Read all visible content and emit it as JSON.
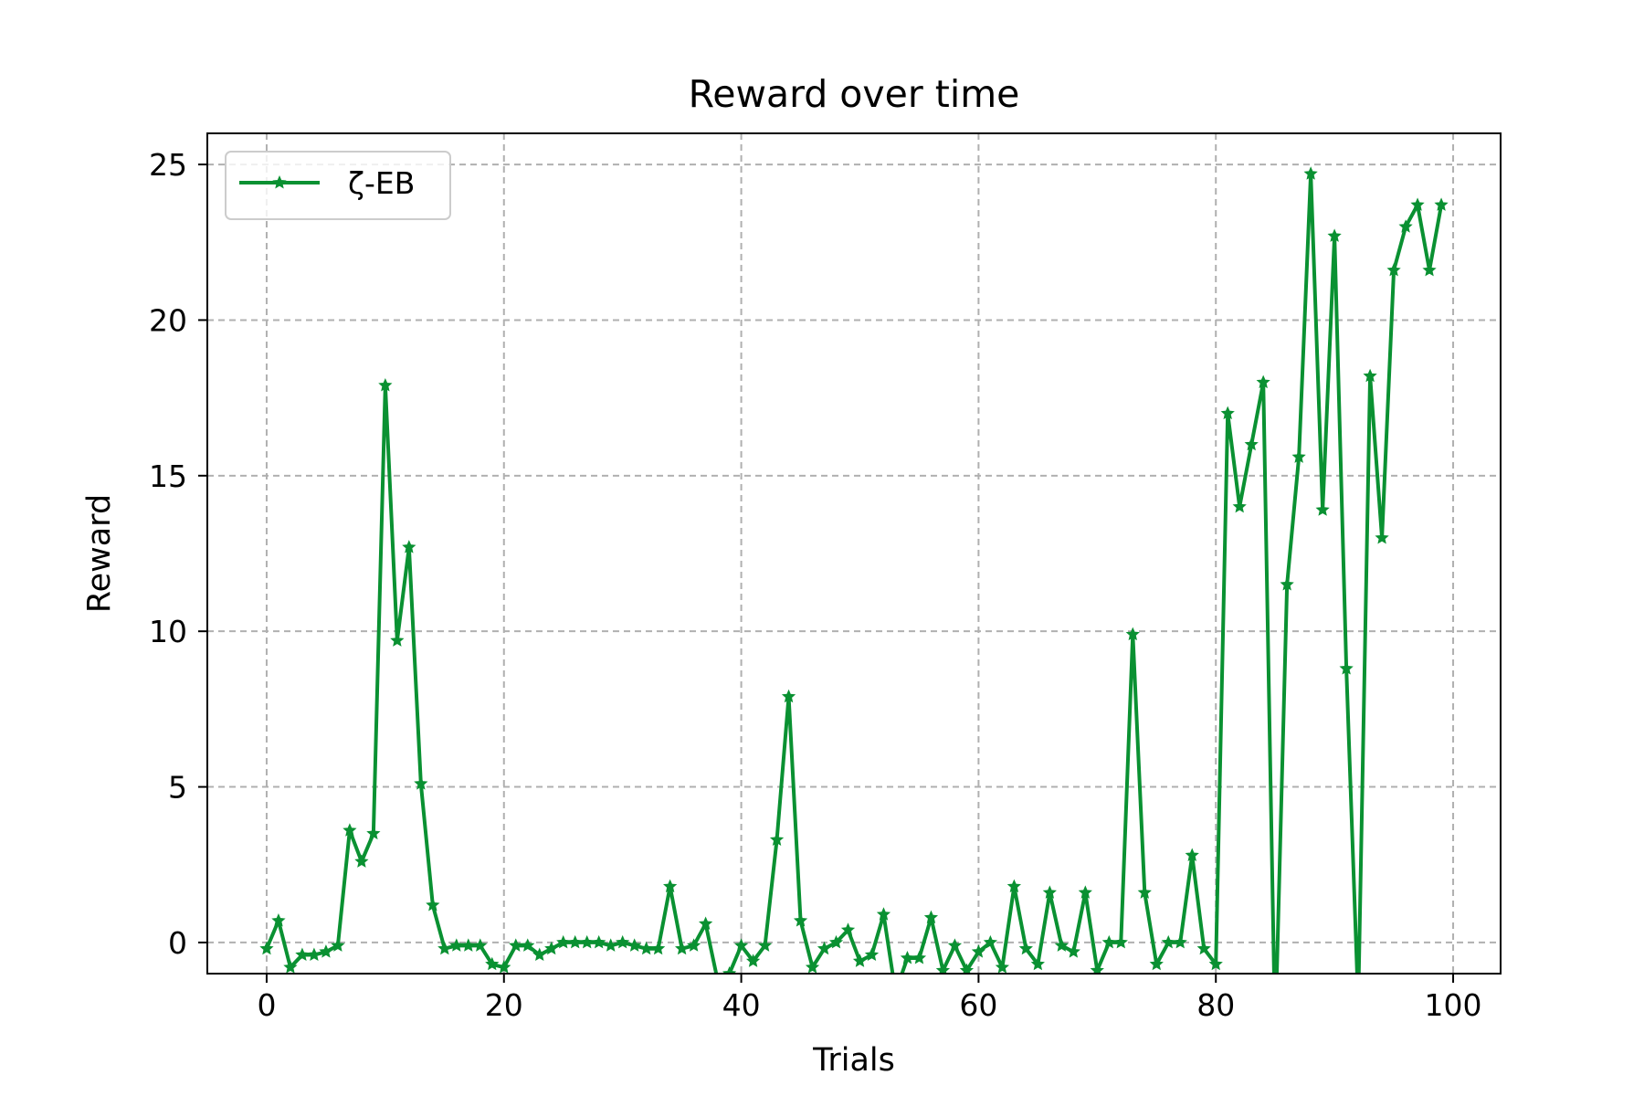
{
  "chart_data": {
    "type": "line",
    "title": "Reward over time",
    "xlabel": "Trials",
    "ylabel": "Reward",
    "xlim": [
      -5,
      104
    ],
    "ylim": [
      -1,
      26
    ],
    "xticks": [
      0,
      20,
      40,
      60,
      80,
      100
    ],
    "yticks": [
      0,
      5,
      10,
      15,
      20,
      25
    ],
    "grid": true,
    "grid_style": "dashed",
    "legend_position": "upper-left",
    "series": [
      {
        "name": "ζ-EB",
        "color": "#0a9132",
        "marker": "star",
        "x": [
          0,
          1,
          2,
          3,
          4,
          5,
          6,
          7,
          8,
          9,
          10,
          11,
          12,
          13,
          14,
          15,
          16,
          17,
          18,
          19,
          20,
          21,
          22,
          23,
          24,
          25,
          26,
          27,
          28,
          29,
          30,
          31,
          32,
          33,
          34,
          35,
          36,
          37,
          38,
          39,
          40,
          41,
          42,
          43,
          44,
          45,
          46,
          47,
          48,
          49,
          50,
          51,
          52,
          53,
          54,
          55,
          56,
          57,
          58,
          59,
          60,
          61,
          62,
          63,
          64,
          65,
          66,
          67,
          68,
          69,
          70,
          71,
          72,
          73,
          74,
          75,
          76,
          77,
          78,
          79,
          80,
          81,
          82,
          83,
          84,
          85,
          86,
          87,
          88,
          89,
          90,
          91,
          92,
          93,
          94,
          95,
          96,
          97,
          98,
          99
        ],
        "y": [
          -0.2,
          0.7,
          -0.8,
          -0.4,
          -0.4,
          -0.3,
          -0.1,
          3.6,
          2.6,
          3.5,
          17.9,
          9.7,
          12.7,
          5.1,
          1.2,
          -0.2,
          -0.1,
          -0.1,
          -0.1,
          -0.7,
          -0.8,
          -0.1,
          -0.1,
          -0.4,
          -0.2,
          0.0,
          0.0,
          0.0,
          0.0,
          -0.1,
          0.0,
          -0.1,
          -0.2,
          -0.2,
          1.8,
          -0.2,
          -0.1,
          0.6,
          -1.2,
          -1.0,
          -0.1,
          -0.6,
          -0.1,
          3.3,
          7.9,
          0.7,
          -0.8,
          -0.2,
          0.0,
          0.4,
          -0.6,
          -0.4,
          0.9,
          -1.6,
          -0.5,
          -0.5,
          0.8,
          -0.9,
          -0.1,
          -0.9,
          -0.3,
          0.0,
          -0.8,
          1.8,
          -0.2,
          -0.7,
          1.6,
          -0.1,
          -0.3,
          1.6,
          -0.9,
          0.0,
          0.0,
          9.9,
          1.6,
          -0.7,
          0.0,
          0.0,
          2.8,
          -0.2,
          -0.7,
          17.0,
          14.0,
          16.0,
          18.0,
          -3.0,
          11.5,
          15.6,
          24.7,
          13.9,
          22.7,
          8.8,
          -2.0,
          18.2,
          13.0,
          21.6,
          23.0,
          23.7,
          21.6,
          23.7
        ]
      }
    ]
  }
}
